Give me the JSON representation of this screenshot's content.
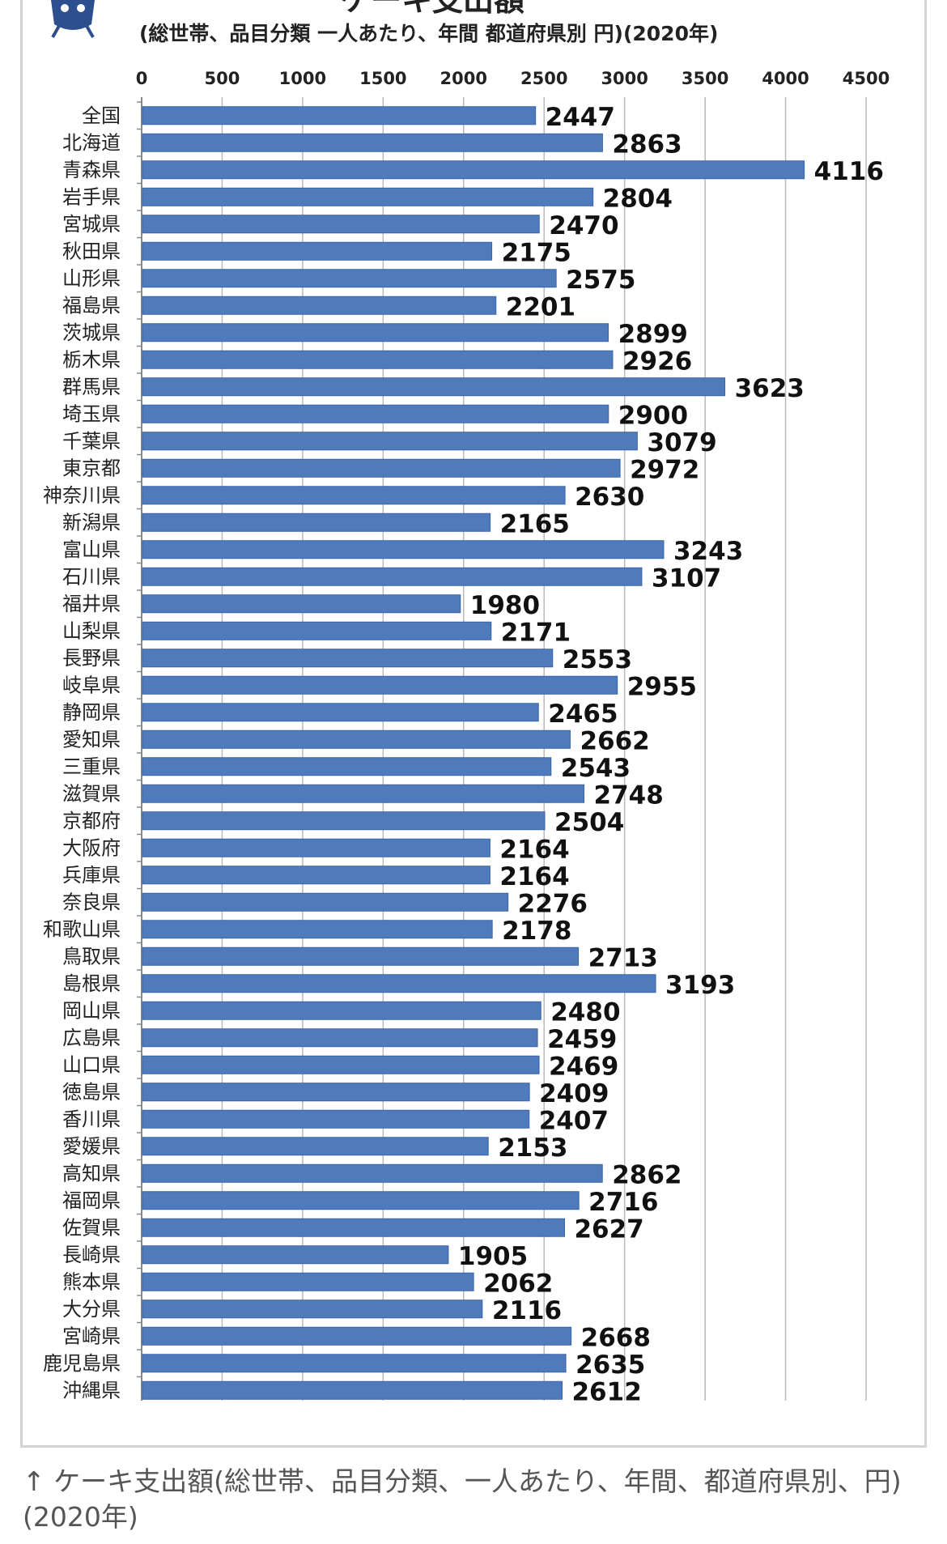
{
  "chart_data": {
    "type": "bar",
    "orientation": "horizontal",
    "title": "ケーキ支出額",
    "subtitle": "(総世帯、品目分類 一人あたり、年間 都道府県別 円)(2020年)",
    "xlim": [
      0,
      4500
    ],
    "x_ticks": [
      0,
      500,
      1000,
      1500,
      2000,
      2500,
      3000,
      3500,
      4000,
      4500
    ],
    "grid": true,
    "legend": "none",
    "bar_color": "#4f7bbd",
    "categories": [
      "全国",
      "北海道",
      "青森県",
      "岩手県",
      "宮城県",
      "秋田県",
      "山形県",
      "福島県",
      "茨城県",
      "栃木県",
      "群馬県",
      "埼玉県",
      "千葉県",
      "東京都",
      "神奈川県",
      "新潟県",
      "富山県",
      "石川県",
      "福井県",
      "山梨県",
      "長野県",
      "岐阜県",
      "静岡県",
      "愛知県",
      "三重県",
      "滋賀県",
      "京都府",
      "大阪府",
      "兵庫県",
      "奈良県",
      "和歌山県",
      "鳥取県",
      "島根県",
      "岡山県",
      "広島県",
      "山口県",
      "徳島県",
      "香川県",
      "愛媛県",
      "高知県",
      "福岡県",
      "佐賀県",
      "長崎県",
      "熊本県",
      "大分県",
      "宮崎県",
      "鹿児島県",
      "沖縄県"
    ],
    "values": [
      2447,
      2863,
      4116,
      2804,
      2470,
      2175,
      2575,
      2201,
      2899,
      2926,
      3623,
      2900,
      3079,
      2972,
      2630,
      2165,
      3243,
      3107,
      1980,
      2171,
      2553,
      2955,
      2465,
      2662,
      2543,
      2748,
      2504,
      2164,
      2164,
      2276,
      2178,
      2713,
      3193,
      2480,
      2459,
      2469,
      2409,
      2407,
      2153,
      2862,
      2716,
      2627,
      1905,
      2062,
      2116,
      2668,
      2635,
      2612
    ]
  },
  "caption": "↑ ケーキ支出額(総世帯、品目分類、一人あたり、年間、都道府県別、円)(2020年)"
}
